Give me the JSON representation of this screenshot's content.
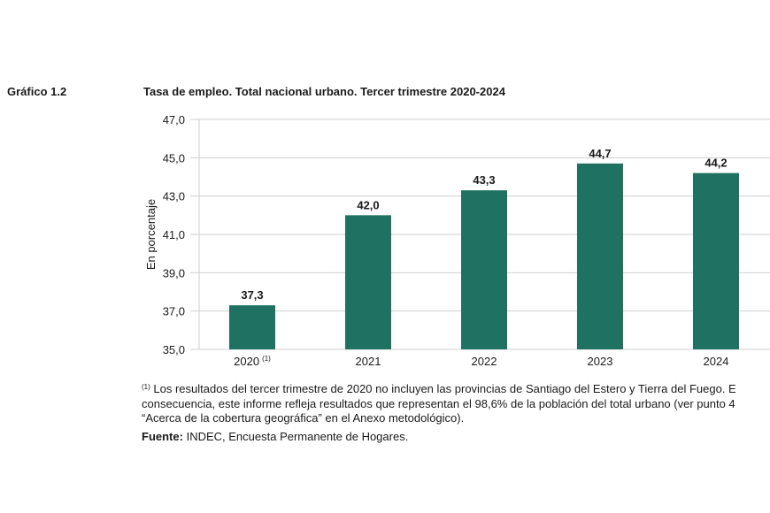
{
  "chart_data": {
    "type": "bar",
    "label": "Gráfico 1.2",
    "title": "Tasa de empleo. Total nacional urbano. Tercer trimestre 2020-2024",
    "y_label": "En porcentaje",
    "categories": [
      "2020",
      "2021",
      "2022",
      "2023",
      "2024"
    ],
    "category_marker": "(1)",
    "values": [
      37.3,
      42.0,
      43.3,
      44.7,
      44.2
    ],
    "value_labels": [
      "37,3",
      "42,0",
      "43,3",
      "44,7",
      "44,2"
    ],
    "color": "#1f7262",
    "ylim": [
      35,
      47
    ],
    "yticks": [
      {
        "value": 35,
        "label": "35,0"
      },
      {
        "value": 37,
        "label": "37,0"
      },
      {
        "value": 39,
        "label": "39,0"
      },
      {
        "value": 41,
        "label": "41,0"
      },
      {
        "value": 43,
        "label": "43,0"
      },
      {
        "value": 45,
        "label": "45,0"
      },
      {
        "value": 47,
        "label": "47,0"
      }
    ],
    "grid": true,
    "footnote": [
      "Los resultados del tercer trimestre de 2020 no incluyen las provincias de Santiago del Estero y Tierra del Fuego. E",
      "consecuencia, este informe refleja resultados que representan el 98,6% de la población del total urbano (ver punto 4",
      "“Acerca de la cobertura geográfica” en el Anexo metodológico)."
    ],
    "source_label": "Fuente:",
    "source": "INDEC, Encuesta Permanente de Hogares."
  }
}
